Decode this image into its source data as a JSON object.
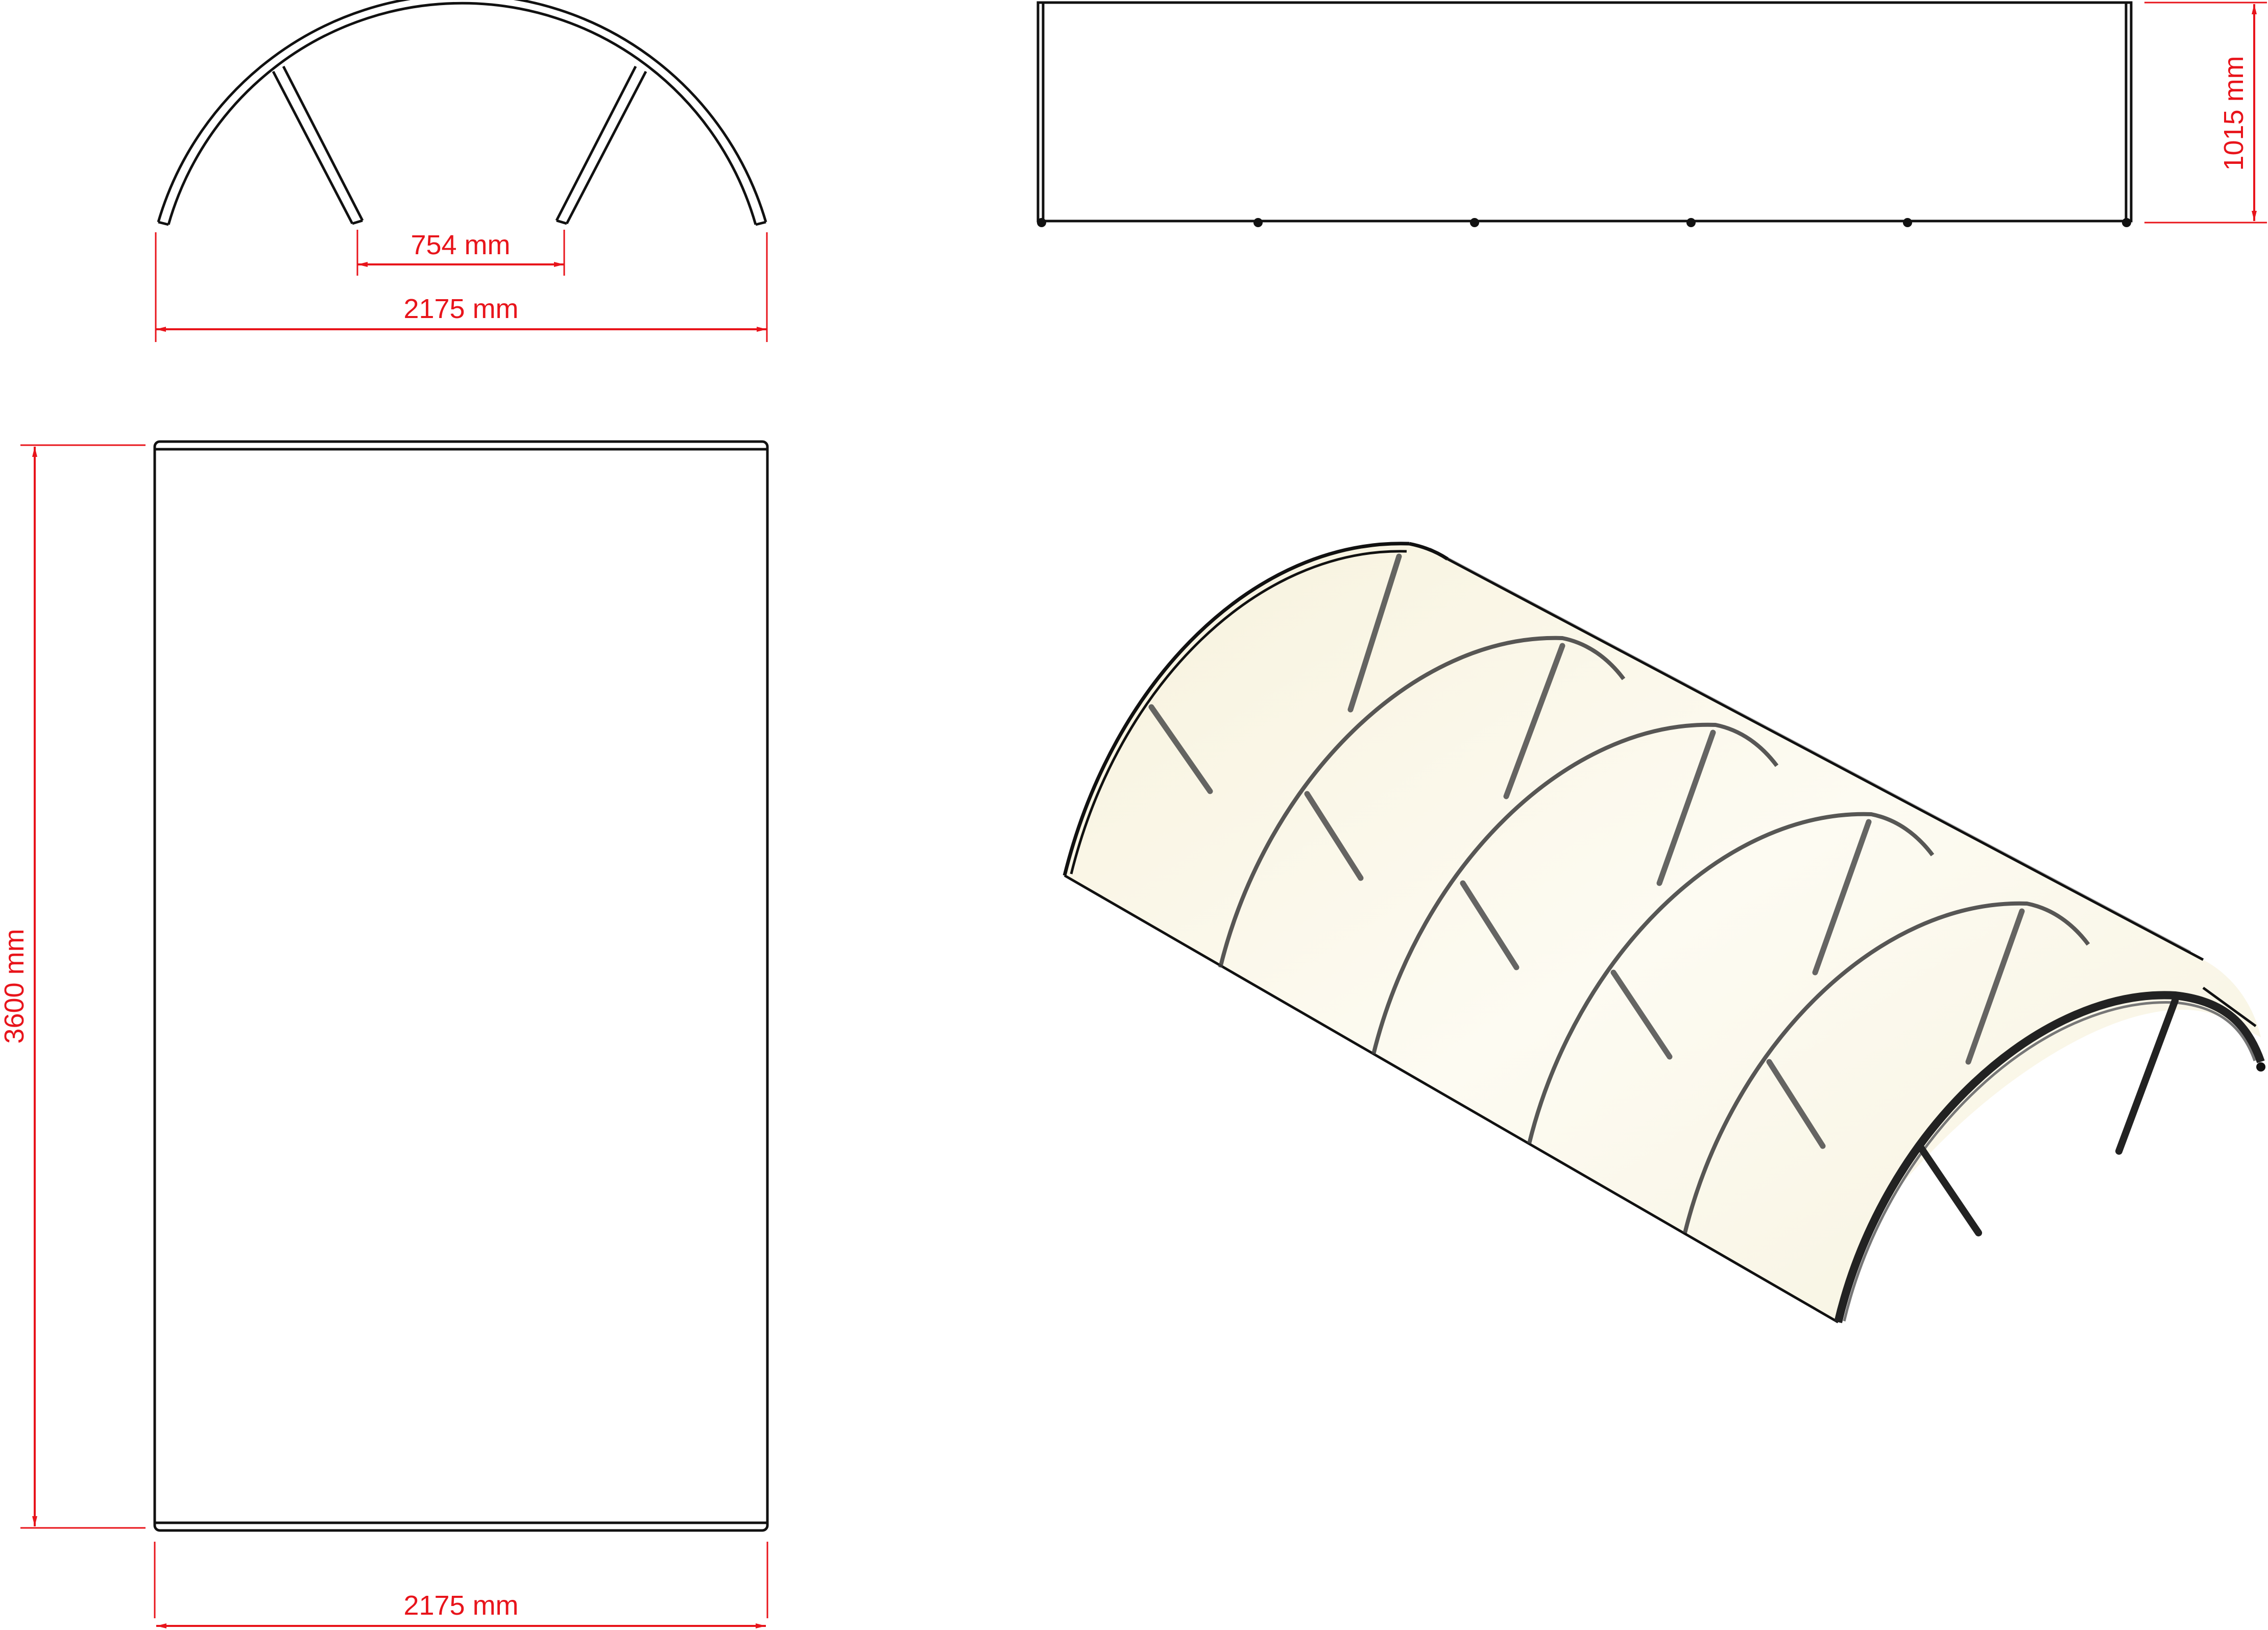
{
  "dimensions": {
    "front_inner_span": "754 mm",
    "front_width": "2175 mm",
    "side_height": "1015 mm",
    "plan_length": "3600 mm",
    "plan_width": "2175 mm"
  },
  "colors": {
    "dimension": "#e8141b",
    "outline": "#111111",
    "canopy_fill": "#fbf8ea"
  }
}
